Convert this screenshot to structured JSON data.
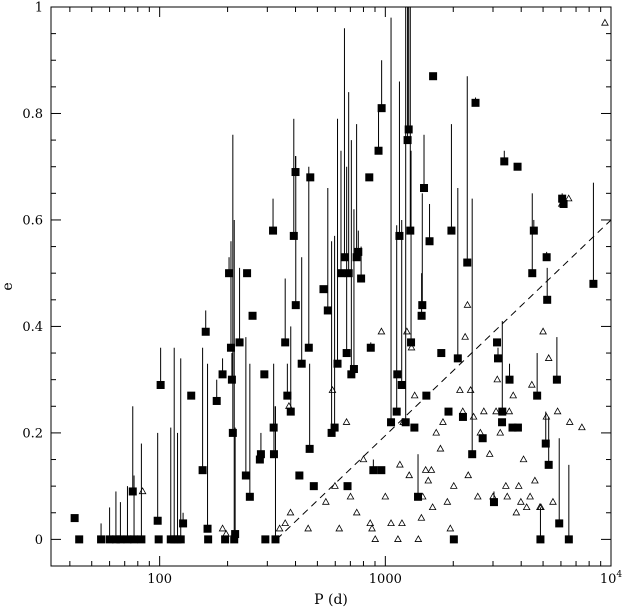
{
  "chart_data": {
    "type": "scatter",
    "xlabel": "P (d)",
    "ylabel": "e",
    "xscale": "log",
    "xlim": [
      33,
      10000
    ],
    "ylim": [
      -0.05,
      1.0
    ],
    "x_tick_labels": [
      {
        "value": 100,
        "label": "100"
      },
      {
        "value": 1000,
        "label": "1000"
      },
      {
        "value": 10000,
        "label": "10",
        "sup": "4"
      }
    ],
    "y_tick_labels": [
      {
        "value": 0,
        "label": "0"
      },
      {
        "value": 0.2,
        "label": "0.2"
      },
      {
        "value": 0.4,
        "label": "0.4"
      },
      {
        "value": 0.6,
        "label": "0.6"
      },
      {
        "value": 0.8,
        "label": "0.8"
      },
      {
        "value": 1,
        "label": "1"
      }
    ],
    "grid": false,
    "colors": {
      "marker": "#000000",
      "axes": "#000000",
      "background": "#ffffff"
    },
    "reference_line": {
      "style": "dashed",
      "points": [
        [
          330,
          0.0
        ],
        [
          10000,
          0.6
        ]
      ]
    },
    "series": [
      {
        "marker": "filled-square",
        "points": [
          {
            "x": 42,
            "y": 0.04
          },
          {
            "x": 44,
            "y": 0.0
          },
          {
            "x": 55,
            "y": 0.0,
            "yhi": 0.03
          },
          {
            "x": 60,
            "y": 0.0,
            "yhi": 0.06
          },
          {
            "x": 64,
            "y": 0.0,
            "yhi": 0.09
          },
          {
            "x": 67,
            "y": 0.0,
            "yhi": 0.07
          },
          {
            "x": 72,
            "y": 0.0,
            "yhi": 0.1
          },
          {
            "x": 76,
            "y": 0.09,
            "yhi": 0.25
          },
          {
            "x": 77,
            "y": 0.0,
            "yhi": 0.12
          },
          {
            "x": 83,
            "y": 0.0,
            "yhi": 0.18
          },
          {
            "x": 98,
            "y": 0.035,
            "yhi": 0.2
          },
          {
            "x": 99,
            "y": 0.0
          },
          {
            "x": 101,
            "y": 0.29,
            "yhi": 0.36
          },
          {
            "x": 112,
            "y": 0.0,
            "yhi": 0.21
          },
          {
            "x": 116,
            "y": 0.0,
            "yhi": 0.36
          },
          {
            "x": 120,
            "y": 0.0,
            "yhi": 0.2
          },
          {
            "x": 124,
            "y": 0.0,
            "yhi": 0.34
          },
          {
            "x": 127,
            "y": 0.03,
            "yhi": 0.05
          },
          {
            "x": 138,
            "y": 0.27
          },
          {
            "x": 155,
            "y": 0.13,
            "yhi": 0.36
          },
          {
            "x": 160,
            "y": 0.39,
            "yhi": 0.43
          },
          {
            "x": 163,
            "y": 0.02,
            "yhi": 0.33
          },
          {
            "x": 164,
            "y": 0.0
          },
          {
            "x": 179,
            "y": 0.26,
            "yhi": 0.3
          },
          {
            "x": 190,
            "y": 0.31,
            "yhi": 0.34
          },
          {
            "x": 195,
            "y": 0.0
          },
          {
            "x": 203,
            "y": 0.5,
            "yhi": 0.53
          },
          {
            "x": 207,
            "y": 0.36,
            "yhi": 0.56
          },
          {
            "x": 209,
            "y": 0.3,
            "yhi": 0.35
          },
          {
            "x": 211,
            "y": 0.2,
            "yhi": 0.76
          },
          {
            "x": 214,
            "y": 0.0,
            "yhi": 0.6
          },
          {
            "x": 216,
            "y": 0.01,
            "yhi": 0.21
          },
          {
            "x": 226,
            "y": 0.37,
            "yhi": 0.51
          },
          {
            "x": 241,
            "y": 0.12,
            "yhi": 0.38
          },
          {
            "x": 244,
            "y": 0.5
          },
          {
            "x": 251,
            "y": 0.08,
            "yhi": 0.33
          },
          {
            "x": 258,
            "y": 0.42
          },
          {
            "x": 278,
            "y": 0.15
          },
          {
            "x": 281,
            "y": 0.16,
            "yhi": 0.2
          },
          {
            "x": 291,
            "y": 0.31
          },
          {
            "x": 294,
            "y": 0.0
          },
          {
            "x": 318,
            "y": 0.58,
            "yhi": 0.64
          },
          {
            "x": 320,
            "y": 0.21,
            "yhi": 0.33
          },
          {
            "x": 321,
            "y": 0.16,
            "yhi": 0.25
          },
          {
            "x": 326,
            "y": 0.0,
            "yhi": 0.25
          },
          {
            "x": 360,
            "y": 0.37,
            "yhi": 0.49
          },
          {
            "x": 368,
            "y": 0.27,
            "yhi": 0.33
          },
          {
            "x": 381,
            "y": 0.24,
            "yhi": 0.4
          },
          {
            "x": 393,
            "y": 0.57,
            "yhi": 0.79
          },
          {
            "x": 400,
            "y": 0.69,
            "yhi": 0.72
          },
          {
            "x": 401,
            "y": 0.44,
            "yhi": 0.72
          },
          {
            "x": 416,
            "y": 0.12
          },
          {
            "x": 426,
            "y": 0.33,
            "yhi": 0.53
          },
          {
            "x": 458,
            "y": 0.36,
            "yhi": 0.7
          },
          {
            "x": 462,
            "y": 0.17,
            "yhi": 0.33
          },
          {
            "x": 465,
            "y": 0.68
          },
          {
            "x": 482,
            "y": 0.1
          },
          {
            "x": 532,
            "y": 0.47
          },
          {
            "x": 556,
            "y": 0.43,
            "yhi": 0.66
          },
          {
            "x": 578,
            "y": 0.2,
            "yhi": 0.56
          },
          {
            "x": 596,
            "y": 0.21,
            "yhi": 0.57
          },
          {
            "x": 614,
            "y": 0.33,
            "yhi": 0.79
          },
          {
            "x": 636,
            "y": 0.5,
            "yhi": 0.73
          },
          {
            "x": 659,
            "y": 0.53,
            "yhi": 0.96
          },
          {
            "x": 674,
            "y": 0.35,
            "yhi": 0.7
          },
          {
            "x": 680,
            "y": 0.1
          },
          {
            "x": 688,
            "y": 0.5,
            "yhi": 0.84
          },
          {
            "x": 707,
            "y": 0.31,
            "yhi": 0.75
          },
          {
            "x": 726,
            "y": 0.32,
            "yhi": 0.62
          },
          {
            "x": 746,
            "y": 0.53,
            "yhi": 0.78
          },
          {
            "x": 759,
            "y": 0.54,
            "yhi": 0.58
          },
          {
            "x": 781,
            "y": 0.49,
            "yhi": 0.55
          },
          {
            "x": 849,
            "y": 0.68
          },
          {
            "x": 862,
            "y": 0.36,
            "yhi": 0.37
          },
          {
            "x": 885,
            "y": 0.13,
            "yhi": 0.15
          },
          {
            "x": 933,
            "y": 0.73,
            "yhi": 0.81
          },
          {
            "x": 960,
            "y": 0.13
          },
          {
            "x": 963,
            "y": 0.81,
            "yhi": 0.9
          },
          {
            "x": 1060,
            "y": 0.22,
            "yhi": 0.98
          },
          {
            "x": 1123,
            "y": 0.24,
            "yhi": 0.59
          },
          {
            "x": 1130,
            "y": 0.31
          },
          {
            "x": 1155,
            "y": 0.57,
            "yhi": 0.86
          },
          {
            "x": 1182,
            "y": 0.29,
            "yhi": 0.6
          },
          {
            "x": 1231,
            "y": 0.22,
            "yhi": 1.0
          },
          {
            "x": 1255,
            "y": 0.75,
            "yhi": 1.0
          },
          {
            "x": 1269,
            "y": 0.77,
            "yhi": 1.0
          },
          {
            "x": 1290,
            "y": 0.58,
            "yhi": 1.0
          },
          {
            "x": 1300,
            "y": 0.37,
            "yhi": 0.73
          },
          {
            "x": 1345,
            "y": 0.21
          },
          {
            "x": 1396,
            "y": 0.08,
            "yhi": 0.16
          },
          {
            "x": 1448,
            "y": 0.42,
            "yhi": 0.5
          },
          {
            "x": 1458,
            "y": 0.44,
            "yhi": 0.65
          },
          {
            "x": 1484,
            "y": 0.66,
            "yhi": 0.76
          },
          {
            "x": 1520,
            "y": 0.27
          },
          {
            "x": 1570,
            "y": 0.56,
            "yhi": 0.63
          },
          {
            "x": 1628,
            "y": 0.87
          },
          {
            "x": 1770,
            "y": 0.35
          },
          {
            "x": 1905,
            "y": 0.24
          },
          {
            "x": 1963,
            "y": 0.58,
            "yhi": 0.78
          },
          {
            "x": 2012,
            "y": 0.0
          },
          {
            "x": 2095,
            "y": 0.34,
            "yhi": 0.66
          },
          {
            "x": 2208,
            "y": 0.23
          },
          {
            "x": 2307,
            "y": 0.52,
            "yhi": 0.87
          },
          {
            "x": 2426,
            "y": 0.16,
            "yhi": 0.64
          },
          {
            "x": 2510,
            "y": 0.82,
            "yhi": 0.83
          },
          {
            "x": 2700,
            "y": 0.19
          },
          {
            "x": 3030,
            "y": 0.07,
            "yhi": 0.09
          },
          {
            "x": 3126,
            "y": 0.37
          },
          {
            "x": 3157,
            "y": 0.34,
            "yhi": 0.36
          },
          {
            "x": 3290,
            "y": 0.22
          },
          {
            "x": 3298,
            "y": 0.24,
            "yhi": 0.41
          },
          {
            "x": 3366,
            "y": 0.71,
            "yhi": 0.73
          },
          {
            "x": 3551,
            "y": 0.3,
            "yhi": 0.33
          },
          {
            "x": 3661,
            "y": 0.21
          },
          {
            "x": 3854,
            "y": 0.7
          },
          {
            "x": 3869,
            "y": 0.21
          },
          {
            "x": 4478,
            "y": 0.5,
            "yhi": 0.65
          },
          {
            "x": 4550,
            "y": 0.58,
            "yhi": 0.6
          },
          {
            "x": 4707,
            "y": 0.27,
            "yhi": 0.35
          },
          {
            "x": 4868,
            "y": 0.0,
            "yhi": 0.06
          },
          {
            "x": 5139,
            "y": 0.18,
            "yhi": 0.24
          },
          {
            "x": 5186,
            "y": 0.53,
            "yhi": 0.54
          },
          {
            "x": 5215,
            "y": 0.45,
            "yhi": 0.51
          },
          {
            "x": 5295,
            "y": 0.14,
            "yhi": 0.23
          },
          {
            "x": 5757,
            "y": 0.3,
            "yhi": 0.38
          },
          {
            "x": 5896,
            "y": 0.03,
            "yhi": 0.19
          },
          {
            "x": 6076,
            "y": 0.64,
            "yhi": 0.65
          },
          {
            "x": 6164,
            "y": 0.63,
            "yhi": 0.64
          },
          {
            "x": 6504,
            "y": 0.0,
            "yhi": 0.14
          },
          {
            "x": 8358,
            "y": 0.48,
            "yhi": 0.67
          }
        ]
      },
      {
        "marker": "open-triangle",
        "points": [
          {
            "x": 84,
            "y": 0.09
          },
          {
            "x": 190,
            "y": 0.02
          },
          {
            "x": 197,
            "y": 0.01
          },
          {
            "x": 340,
            "y": 0.02
          },
          {
            "x": 360,
            "y": 0.03
          },
          {
            "x": 374,
            "y": 0.25
          },
          {
            "x": 380,
            "y": 0.05
          },
          {
            "x": 455,
            "y": 0.02
          },
          {
            "x": 545,
            "y": 0.07
          },
          {
            "x": 583,
            "y": 0.28
          },
          {
            "x": 598,
            "y": 0.1
          },
          {
            "x": 625,
            "y": 0.02
          },
          {
            "x": 673,
            "y": 0.22
          },
          {
            "x": 701,
            "y": 0.08
          },
          {
            "x": 747,
            "y": 0.05
          },
          {
            "x": 800,
            "y": 0.15
          },
          {
            "x": 857,
            "y": 0.03
          },
          {
            "x": 873,
            "y": 0.02
          },
          {
            "x": 902,
            "y": 0.0
          },
          {
            "x": 961,
            "y": 0.39
          },
          {
            "x": 1000,
            "y": 0.08
          },
          {
            "x": 1060,
            "y": 0.03
          },
          {
            "x": 1137,
            "y": 0.0
          },
          {
            "x": 1160,
            "y": 0.14
          },
          {
            "x": 1185,
            "y": 0.03
          },
          {
            "x": 1200,
            "y": 0.22
          },
          {
            "x": 1246,
            "y": 0.39
          },
          {
            "x": 1276,
            "y": 0.12
          },
          {
            "x": 1306,
            "y": 0.36
          },
          {
            "x": 1349,
            "y": 0.27
          },
          {
            "x": 1400,
            "y": 0.0
          },
          {
            "x": 1445,
            "y": 0.04
          },
          {
            "x": 1464,
            "y": 0.08
          },
          {
            "x": 1509,
            "y": 0.13
          },
          {
            "x": 1550,
            "y": 0.11
          },
          {
            "x": 1600,
            "y": 0.13
          },
          {
            "x": 1620,
            "y": 0.06
          },
          {
            "x": 1681,
            "y": 0.2
          },
          {
            "x": 1755,
            "y": 0.17
          },
          {
            "x": 1800,
            "y": 0.22
          },
          {
            "x": 1883,
            "y": 0.07
          },
          {
            "x": 1941,
            "y": 0.02
          },
          {
            "x": 2010,
            "y": 0.1
          },
          {
            "x": 2140,
            "y": 0.28
          },
          {
            "x": 2204,
            "y": 0.24
          },
          {
            "x": 2258,
            "y": 0.38
          },
          {
            "x": 2312,
            "y": 0.44
          },
          {
            "x": 2330,
            "y": 0.12
          },
          {
            "x": 2387,
            "y": 0.28
          },
          {
            "x": 2461,
            "y": 0.23
          },
          {
            "x": 2568,
            "y": 0.08
          },
          {
            "x": 2637,
            "y": 0.2
          },
          {
            "x": 2732,
            "y": 0.24
          },
          {
            "x": 2900,
            "y": 0.16
          },
          {
            "x": 3001,
            "y": 0.08
          },
          {
            "x": 3095,
            "y": 0.24
          },
          {
            "x": 3134,
            "y": 0.3
          },
          {
            "x": 3230,
            "y": 0.2
          },
          {
            "x": 3420,
            "y": 0.1
          },
          {
            "x": 3469,
            "y": 0.08
          },
          {
            "x": 3542,
            "y": 0.24
          },
          {
            "x": 3687,
            "y": 0.27
          },
          {
            "x": 3806,
            "y": 0.05
          },
          {
            "x": 3900,
            "y": 0.1
          },
          {
            "x": 3986,
            "y": 0.07
          },
          {
            "x": 4097,
            "y": 0.15
          },
          {
            "x": 4229,
            "y": 0.06
          },
          {
            "x": 4380,
            "y": 0.08
          },
          {
            "x": 4458,
            "y": 0.29
          },
          {
            "x": 4600,
            "y": 0.11
          },
          {
            "x": 4841,
            "y": 0.06
          },
          {
            "x": 4890,
            "y": 0.06
          },
          {
            "x": 5000,
            "y": 0.39
          },
          {
            "x": 5171,
            "y": 0.23
          },
          {
            "x": 5295,
            "y": 0.34
          },
          {
            "x": 5530,
            "y": 0.07
          },
          {
            "x": 5798,
            "y": 0.24
          },
          {
            "x": 6050,
            "y": 0.63
          },
          {
            "x": 6493,
            "y": 0.64
          },
          {
            "x": 6564,
            "y": 0.22
          },
          {
            "x": 7430,
            "y": 0.21
          },
          {
            "x": 9400,
            "y": 0.97
          }
        ]
      }
    ]
  }
}
